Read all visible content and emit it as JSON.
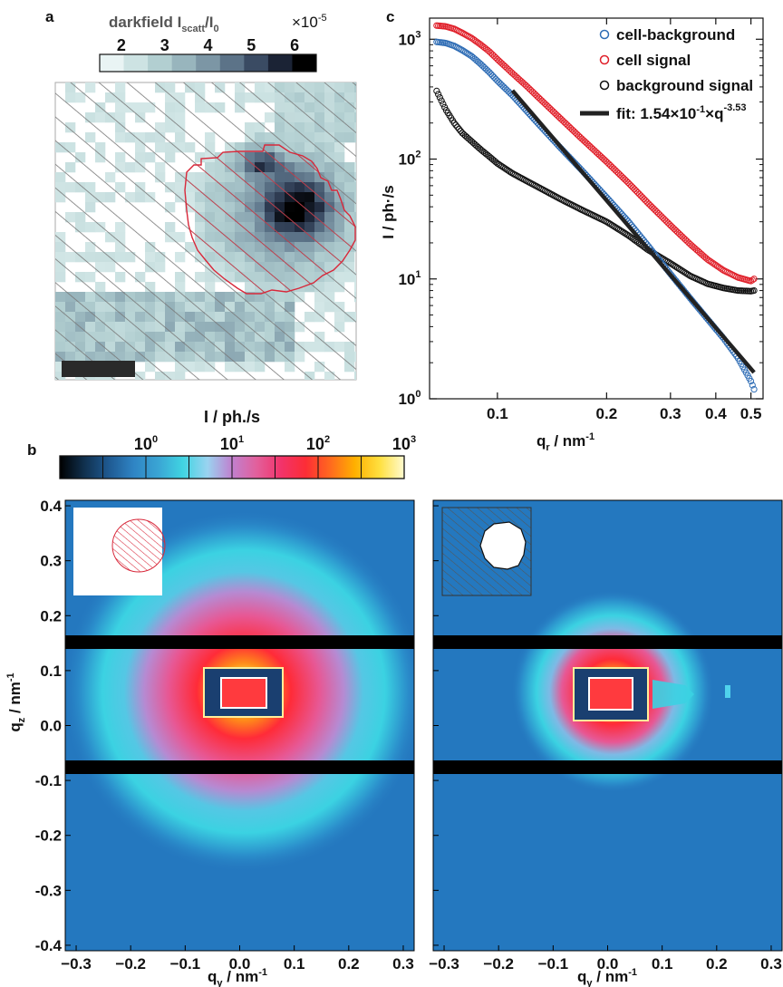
{
  "panel_labels": {
    "a": "a",
    "b": "b",
    "c": "c"
  },
  "chart_data": [
    {
      "id": "a",
      "type": "heatmap",
      "colorbar": {
        "label_main": "darkfield I",
        "label_sub1": "scatt",
        "label_mid": "/I",
        "label_sub2": "0",
        "multiplier_base": "×10",
        "multiplier_exp": "-5",
        "ticks": [
          "2",
          "3",
          "4",
          "5",
          "6"
        ],
        "range": [
          1.5,
          6.5
        ],
        "colors": [
          "#e9f4f4",
          "#cde3e3",
          "#b2cfd1",
          "#98b5bd",
          "#7c96a5",
          "#5c7388",
          "#3a4b63",
          "#1b2335",
          "#000000"
        ]
      },
      "scale_bar": true
    },
    {
      "id": "c",
      "type": "scatter",
      "xlabel_main": "q",
      "xlabel_sub": "r",
      "xlabel_unit": " / nm",
      "xlabel_exp": "-1",
      "ylabel": "I / ph·/s",
      "xscale": "log",
      "yscale": "log",
      "xlim": [
        0.065,
        0.54
      ],
      "ylim": [
        1,
        1500
      ],
      "xticks": [
        {
          "v": 0.1,
          "label": "0.1"
        },
        {
          "v": 0.2,
          "label": "0.2"
        },
        {
          "v": 0.3,
          "label": "0.3"
        },
        {
          "v": 0.4,
          "label": "0.4"
        },
        {
          "v": 0.5,
          "label": "0.5"
        }
      ],
      "yticks": [
        {
          "v": 1,
          "base": "10",
          "exp": "0"
        },
        {
          "v": 10,
          "base": "10",
          "exp": "1"
        },
        {
          "v": 100,
          "base": "10",
          "exp": "2"
        },
        {
          "v": 1000,
          "base": "10",
          "exp": "3"
        }
      ],
      "legend_position": "top-right",
      "series": [
        {
          "name": "cell-background",
          "color": "#2f6db5",
          "marker": "circle",
          "x": [
            0.068,
            0.072,
            0.076,
            0.08,
            0.085,
            0.09,
            0.095,
            0.1,
            0.11,
            0.12,
            0.13,
            0.15,
            0.17,
            0.2,
            0.23,
            0.26,
            0.3,
            0.34,
            0.38,
            0.42,
            0.46,
            0.5,
            0.51
          ],
          "y": [
            950,
            930,
            880,
            810,
            720,
            620,
            530,
            450,
            340,
            255,
            195,
            122,
            82,
            48,
            30,
            19,
            11,
            6.9,
            4.6,
            3.2,
            2.2,
            1.4,
            1.2
          ]
        },
        {
          "name": "cell signal",
          "color": "#e0202a",
          "marker": "circle",
          "x": [
            0.068,
            0.072,
            0.076,
            0.08,
            0.085,
            0.09,
            0.095,
            0.1,
            0.11,
            0.12,
            0.13,
            0.15,
            0.17,
            0.2,
            0.23,
            0.26,
            0.3,
            0.34,
            0.38,
            0.42,
            0.46,
            0.5,
            0.51
          ],
          "y": [
            1300,
            1280,
            1220,
            1130,
            1020,
            900,
            790,
            680,
            520,
            410,
            325,
            215,
            150,
            95,
            63,
            43,
            28,
            19.5,
            14.5,
            11.8,
            10.3,
            9.6,
            10
          ]
        },
        {
          "name": "background signal",
          "color": "#111111",
          "marker": "circle",
          "x": [
            0.068,
            0.072,
            0.076,
            0.08,
            0.085,
            0.09,
            0.095,
            0.1,
            0.11,
            0.12,
            0.13,
            0.15,
            0.17,
            0.2,
            0.23,
            0.26,
            0.3,
            0.34,
            0.38,
            0.42,
            0.46,
            0.5,
            0.51
          ],
          "y": [
            370,
            260,
            200,
            165,
            140,
            120,
            105,
            92,
            76,
            66,
            58,
            46,
            38,
            30,
            23,
            17.5,
            13.5,
            10.6,
            9.1,
            8.4,
            8.0,
            7.9,
            8.0
          ]
        },
        {
          "name": "fit: 1.54×10",
          "name_exp1": "-1",
          "name_mid": "×q",
          "name_exp2": "-3.53",
          "color": "#222222",
          "marker": "line",
          "prefactor": 0.154,
          "exponent": -3.53,
          "x_range": [
            0.11,
            0.51
          ]
        }
      ]
    },
    {
      "id": "b",
      "type": "heatmap",
      "colorbar": {
        "label": "I / ph./s",
        "ticks": [
          {
            "v": 1,
            "base": "10",
            "exp": "0"
          },
          {
            "v": 10,
            "base": "10",
            "exp": "1"
          },
          {
            "v": 100,
            "base": "10",
            "exp": "2"
          },
          {
            "v": 1000,
            "base": "10",
            "exp": "3"
          }
        ],
        "range": [
          0.1,
          1000
        ],
        "scale": "log",
        "colors": [
          "#000000",
          "#10304e",
          "#1f5a92",
          "#2f84c4",
          "#3aa5d4",
          "#40d4e2",
          "#9ad3f0",
          "#c080cf",
          "#e2609c",
          "#f2336a",
          "#fc2d36",
          "#ff6a1e",
          "#ffb000",
          "#ffe040",
          "#fffbd0"
        ]
      },
      "xlabel_main": "q",
      "xlabel_sub": "y",
      "xlabel_unit": " / nm",
      "xlabel_exp": "-1",
      "ylabel_main": "q",
      "ylabel_sub": "z",
      "ylabel_unit": " / nm",
      "ylabel_exp": "-1",
      "xlim": [
        -0.32,
        0.32
      ],
      "ylim": [
        -0.41,
        0.41
      ],
      "xticks": [
        "-0.3",
        "-0.2",
        "-0.1",
        "0.0",
        "0.1",
        "0.2",
        "0.3"
      ],
      "xtick_vals": [
        -0.3,
        -0.2,
        -0.1,
        0.0,
        0.1,
        0.2,
        0.3
      ],
      "yticks": [
        "0.4",
        "0.3",
        "0.2",
        "0.1",
        "0.0",
        "-0.1",
        "-0.2",
        "-0.3",
        "-0.4"
      ],
      "ytick_vals": [
        0.4,
        0.3,
        0.2,
        0.1,
        0.0,
        -0.1,
        -0.2,
        -0.3,
        -0.4
      ],
      "beamstop_q": [
        0.135,
        -0.145
      ],
      "panels": [
        {
          "name": "cell signal",
          "inset": "cell"
        },
        {
          "name": "background signal",
          "inset": "background"
        }
      ]
    }
  ]
}
